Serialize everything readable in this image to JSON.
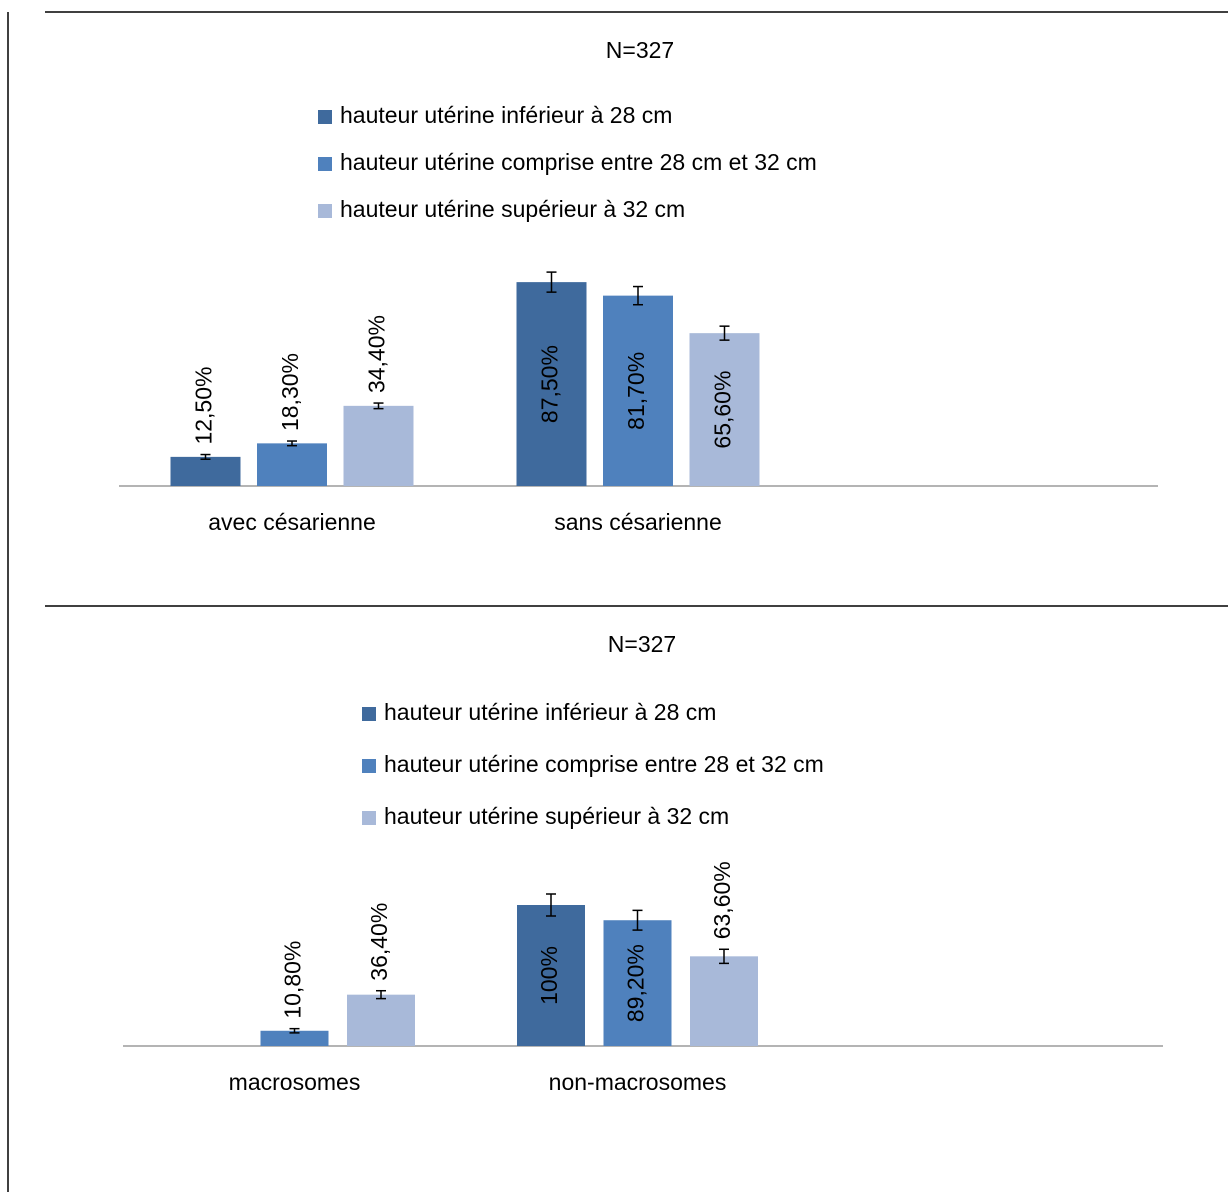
{
  "chart_data": [
    {
      "type": "bar",
      "title": "N=327",
      "categories": [
        "avec  césarienne",
        "sans césarienne"
      ],
      "ylim": [
        0,
        100
      ],
      "series": [
        {
          "name": "hauteur utérine inférieur à 28 cm",
          "color": "#3f6a9d",
          "values": [
            12.5,
            87.5
          ],
          "value_labels": [
            "12,50%",
            "87,50%"
          ],
          "errors": [
            1,
            4.3
          ]
        },
        {
          "name": "hauteur utérine comprise entre 28 cm et 32 cm",
          "color": "#4f81bd",
          "values": [
            18.3,
            81.7
          ],
          "value_labels": [
            "18,30%",
            "81,70%"
          ],
          "errors": [
            1,
            3.9
          ]
        },
        {
          "name": "hauteur utérine supérieur à 32 cm",
          "color": "#a8b9d9",
          "values": [
            34.4,
            65.6
          ],
          "value_labels": [
            "34,40%",
            "65,60%"
          ],
          "errors": [
            1.2,
            3
          ]
        }
      ]
    },
    {
      "type": "bar",
      "title": "N=327",
      "categories": [
        "macrosomes",
        "non-macrosomes"
      ],
      "ylim": [
        0,
        100
      ],
      "series": [
        {
          "name": "hauteur utérine inférieur à 28 cm",
          "color": "#3f6a9d",
          "values": [
            null,
            100
          ],
          "value_labels": [
            null,
            "100%"
          ],
          "errors": [
            null,
            7.8
          ]
        },
        {
          "name": "hauteur utérine comprise entre 28 et 32 cm",
          "color": "#4f81bd",
          "values": [
            10.8,
            89.2
          ],
          "value_labels": [
            "10,80%",
            "89,20%"
          ],
          "errors": [
            1.5,
            7
          ]
        },
        {
          "name": "hauteur utérine supérieur à 32 cm",
          "color": "#a8b9d9",
          "values": [
            36.4,
            63.6
          ],
          "value_labels": [
            "36,40%",
            "63,60%"
          ],
          "errors": [
            2.8,
            5
          ]
        }
      ]
    }
  ]
}
